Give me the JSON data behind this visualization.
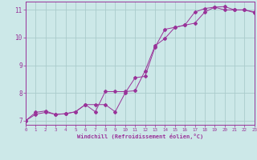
{
  "xlabel": "Windchill (Refroidissement éolien,°C)",
  "bg_color": "#cce8e8",
  "grid_color": "#aacccc",
  "line_color": "#993399",
  "xlim": [
    0,
    23
  ],
  "ylim": [
    6.85,
    11.3
  ],
  "xticks": [
    0,
    1,
    2,
    3,
    4,
    5,
    6,
    7,
    8,
    9,
    10,
    11,
    12,
    13,
    14,
    15,
    16,
    17,
    18,
    19,
    20,
    21,
    22,
    23
  ],
  "yticks": [
    7,
    8,
    9,
    10,
    11
  ],
  "line1_x": [
    0,
    1,
    2,
    3,
    4,
    5,
    6,
    7,
    8,
    9,
    10,
    11,
    12,
    13,
    14,
    15,
    16,
    17,
    18,
    19,
    20,
    21,
    22,
    23
  ],
  "line1_y": [
    7.0,
    7.3,
    7.35,
    7.22,
    7.25,
    7.32,
    7.58,
    7.32,
    8.05,
    8.05,
    8.05,
    8.08,
    8.8,
    9.7,
    9.97,
    10.37,
    10.45,
    10.52,
    10.92,
    11.1,
    11.12,
    11.0,
    11.0,
    10.93
  ],
  "line2_x": [
    0,
    1,
    2,
    3,
    4,
    5,
    6,
    7,
    8,
    9,
    10,
    11,
    12,
    13,
    14,
    15,
    16,
    17,
    18,
    19,
    20,
    21,
    22,
    23
  ],
  "line2_y": [
    7.0,
    7.23,
    7.3,
    7.23,
    7.25,
    7.32,
    7.58,
    7.58,
    7.58,
    7.32,
    8.0,
    8.55,
    8.6,
    9.65,
    10.3,
    10.37,
    10.45,
    10.92,
    11.05,
    11.1,
    11.0,
    11.0,
    11.0,
    10.9
  ]
}
